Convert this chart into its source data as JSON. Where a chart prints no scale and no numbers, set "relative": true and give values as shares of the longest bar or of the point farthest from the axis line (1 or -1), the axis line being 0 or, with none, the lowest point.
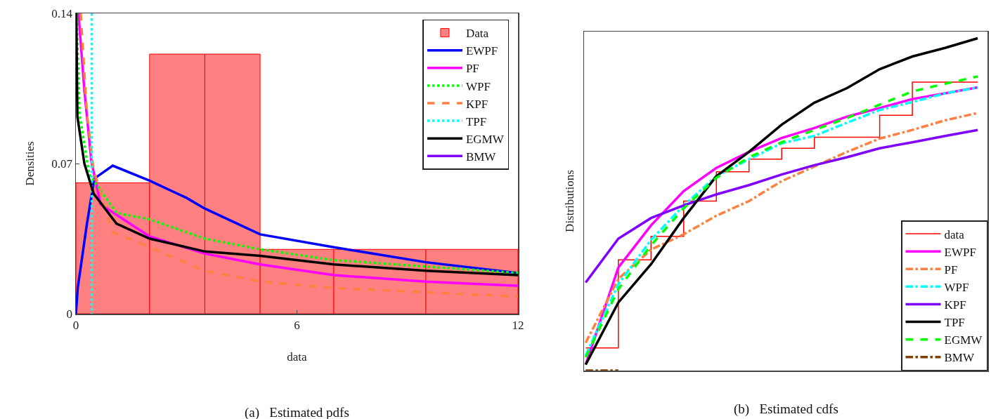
{
  "chart_data": [
    {
      "type": "line",
      "xlabel": "data",
      "ylabel": "Densities",
      "xlim": [
        0,
        12
      ],
      "xticks": [
        0,
        6,
        12
      ],
      "ylim": [
        0,
        0.14
      ],
      "yticks": [
        0,
        0.07,
        0.14
      ],
      "grid": false,
      "legend": "top right",
      "annotations": [
        "(a)   Estimated pdfs"
      ],
      "series": [
        {
          "name": "Data",
          "type": "histogram",
          "color": "#ff8080",
          "bins": [
            0,
            2,
            3.5,
            5,
            7,
            9.5,
            12
          ],
          "values": [
            0.061,
            0.121,
            0.121,
            0.03,
            0.03,
            0.03
          ]
        },
        {
          "name": "EWPF",
          "color": "#0000ff",
          "line_style": "solid",
          "x": [
            0,
            0.05,
            0.3,
            0.5,
            1,
            2,
            3,
            3.5,
            5,
            7,
            9.5,
            12
          ],
          "values": [
            0,
            0.012,
            0.042,
            0.063,
            0.069,
            0.062,
            0.054,
            0.049,
            0.037,
            0.031,
            0.024,
            0.019
          ]
        },
        {
          "name": "PF",
          "color": "#ff00ff",
          "line_style": "solid",
          "x": [
            0.07,
            0.23,
            0.42,
            0.67,
            2,
            3.5,
            5,
            7,
            9.5,
            12
          ],
          "values": [
            0.14,
            0.104,
            0.071,
            0.051,
            0.036,
            0.028,
            0.023,
            0.018,
            0.015,
            0.013
          ]
        },
        {
          "name": "WPF",
          "color": "#00ff00",
          "line_style": "dotted",
          "x": [
            0.02,
            0.1,
            0.36,
            1.1,
            2,
            3.5,
            5,
            7,
            9.5,
            12
          ],
          "values": [
            0.14,
            0.093,
            0.065,
            0.047,
            0.044,
            0.035,
            0.03,
            0.025,
            0.022,
            0.019
          ]
        },
        {
          "name": "KPF",
          "color": "#ff8040",
          "line_style": "dashed",
          "x": [
            0.13,
            0.3,
            0.48,
            1,
            2,
            3.5,
            5,
            7,
            9.5,
            12
          ],
          "values": [
            0.14,
            0.093,
            0.067,
            0.038,
            0.031,
            0.02,
            0.015,
            0.012,
            0.01,
            0.008
          ]
        },
        {
          "name": "TPF",
          "color": "#00ffff",
          "line_style": "dotted",
          "x": [
            0.43,
            0.43
          ],
          "values": [
            0.14,
            0
          ]
        },
        {
          "name": "EGMW",
          "color": "#000000",
          "line_style": "solid",
          "x": [
            0.01,
            0.04,
            0.23,
            0.48,
            1.1,
            2,
            3.5,
            5,
            7,
            9.5,
            12
          ],
          "values": [
            0.14,
            0.092,
            0.07,
            0.056,
            0.042,
            0.035,
            0.029,
            0.027,
            0.023,
            0.02,
            0.018
          ]
        },
        {
          "name": "BMW",
          "color": "#8000ff",
          "line_style": "solid"
        }
      ]
    },
    {
      "type": "line",
      "relative": true,
      "ylabel": "Distributions",
      "grid": false,
      "legend": "bottom right",
      "annotations": [
        "(b)   Estimated cdfs"
      ],
      "categories": [
        null,
        null,
        null,
        null,
        null,
        null,
        null,
        null,
        null,
        null,
        null,
        null,
        null
      ],
      "series": [
        {
          "name": "data",
          "type": "step",
          "color": "#ff0000",
          "line_style": "solid",
          "values": [
            0.068,
            0.333,
            0.404,
            0.51,
            0.598,
            0.636,
            0.669,
            0.702,
            0.702,
            0.768,
            0.868,
            0.868,
            0.868
          ]
        },
        {
          "name": "EWPF",
          "color": "#ff00ff",
          "line_style": "solid",
          "values": [
            0.018,
            0.31,
            0.437,
            0.54,
            0.61,
            0.658,
            0.7,
            0.73,
            0.764,
            0.79,
            0.817,
            0.834,
            0.852
          ]
        },
        {
          "name": "PF",
          "color": "#ff8040",
          "line_style": "dashdot",
          "values": [
            0.084,
            0.276,
            0.364,
            0.41,
            0.466,
            0.51,
            0.57,
            0.614,
            0.658,
            0.698,
            0.724,
            0.753,
            0.775
          ]
        },
        {
          "name": "WPF",
          "color": "#00ffff",
          "line_style": "dashdot",
          "values": [
            0.046,
            0.26,
            0.393,
            0.497,
            0.585,
            0.636,
            0.684,
            0.706,
            0.746,
            0.784,
            0.808,
            0.834,
            0.852
          ]
        },
        {
          "name": "KPF",
          "color": "#8000ff",
          "line_style": "solid",
          "values": [
            0.265,
            0.397,
            0.459,
            0.497,
            0.53,
            0.558,
            0.59,
            0.618,
            0.642,
            0.669,
            0.687,
            0.706,
            0.724
          ]
        },
        {
          "name": "TPF",
          "color": "#000000",
          "line_style": "solid",
          "values": [
            0.018,
            0.205,
            0.32,
            0.459,
            0.585,
            0.658,
            0.74,
            0.806,
            0.85,
            0.907,
            0.945,
            0.971,
            1
          ]
        },
        {
          "name": "EGMW",
          "color": "#00ff00",
          "line_style": "dashed",
          "values": [
            0.04,
            0.245,
            0.377,
            0.488,
            0.58,
            0.642,
            0.687,
            0.724,
            0.76,
            0.8,
            0.84,
            0.863,
            0.885
          ]
        },
        {
          "name": "BMW",
          "color": "#804000",
          "line_style": "dashdot",
          "values": [
            0,
            0,
            null,
            null,
            null,
            null,
            null,
            null,
            null,
            null,
            null,
            null,
            null
          ]
        }
      ]
    }
  ]
}
